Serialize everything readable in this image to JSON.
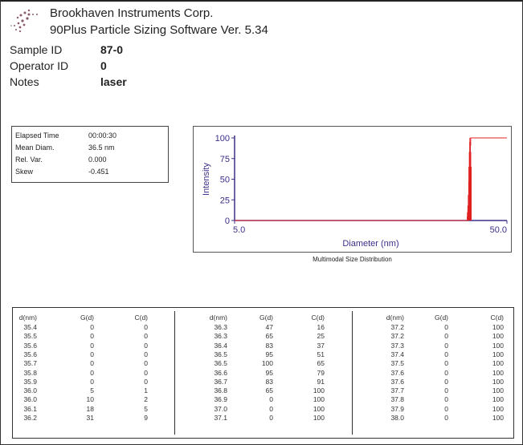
{
  "header": {
    "company": "Brookhaven Instruments Corp.",
    "software": "90Plus Particle Sizing Software Ver. 5.34",
    "logo_icon": "dotted-swirl-logo"
  },
  "sample": [
    {
      "label": "Sample ID",
      "value": "87-0"
    },
    {
      "label": "Operator ID",
      "value": "0"
    },
    {
      "label": "Notes",
      "value": "laser"
    }
  ],
  "summary": [
    {
      "label": "Elapsed Time",
      "value": "00:00:30"
    },
    {
      "label": "Mean Diam.",
      "value": "36.5 nm"
    },
    {
      "label": "Rel. Var.",
      "value": "0.000"
    },
    {
      "label": "Skew",
      "value": "-0.451"
    }
  ],
  "chart_data": {
    "type": "bar",
    "title": "Multimodal Size Distribution",
    "xlabel": "Diameter (nm)",
    "ylabel": "Intensity",
    "xscale": "log",
    "xlim": [
      5.0,
      50.0
    ],
    "ylim": [
      0,
      100
    ],
    "xticks": [
      "5.0",
      "50.0"
    ],
    "yticks": [
      "0",
      "25",
      "50",
      "75",
      "100"
    ],
    "grid": false,
    "colors": {
      "series": "#e02020",
      "axis": "#3a2f8a"
    },
    "x": [
      36.0,
      36.0,
      36.1,
      36.2,
      36.3,
      36.3,
      36.4,
      36.5,
      36.5,
      36.6,
      36.7,
      36.8
    ],
    "series": [
      {
        "key": "G(d)",
        "values": [
          5,
          10,
          18,
          31,
          47,
          65,
          83,
          95,
          100,
          95,
          83,
          65
        ]
      },
      {
        "key": "C(d)",
        "cumulative": true,
        "values": [
          1,
          2,
          5,
          9,
          16,
          25,
          37,
          51,
          65,
          79,
          91,
          100
        ]
      }
    ]
  },
  "table": {
    "headers": [
      "d(nm)",
      "G(d)",
      "C(d)"
    ],
    "groups": [
      [
        [
          "35.4",
          "0",
          "0"
        ],
        [
          "35.5",
          "0",
          "0"
        ],
        [
          "35.6",
          "0",
          "0"
        ],
        [
          "35.6",
          "0",
          "0"
        ],
        [
          "35.7",
          "0",
          "0"
        ],
        [
          "35.8",
          "0",
          "0"
        ],
        [
          "35.9",
          "0",
          "0"
        ],
        [
          "36.0",
          "5",
          "1"
        ],
        [
          "36.0",
          "10",
          "2"
        ],
        [
          "36.1",
          "18",
          "5"
        ],
        [
          "36.2",
          "31",
          "9"
        ]
      ],
      [
        [
          "36.3",
          "47",
          "16"
        ],
        [
          "36.3",
          "65",
          "25"
        ],
        [
          "36.4",
          "83",
          "37"
        ],
        [
          "36.5",
          "95",
          "51"
        ],
        [
          "36.5",
          "100",
          "65"
        ],
        [
          "36.6",
          "95",
          "79"
        ],
        [
          "36.7",
          "83",
          "91"
        ],
        [
          "36.8",
          "65",
          "100"
        ],
        [
          "36.9",
          "0",
          "100"
        ],
        [
          "37.0",
          "0",
          "100"
        ],
        [
          "37.1",
          "0",
          "100"
        ]
      ],
      [
        [
          "37.2",
          "0",
          "100"
        ],
        [
          "37.2",
          "0",
          "100"
        ],
        [
          "37.3",
          "0",
          "100"
        ],
        [
          "37.4",
          "0",
          "100"
        ],
        [
          "37.5",
          "0",
          "100"
        ],
        [
          "37.6",
          "0",
          "100"
        ],
        [
          "37.6",
          "0",
          "100"
        ],
        [
          "37.7",
          "0",
          "100"
        ],
        [
          "37.8",
          "0",
          "100"
        ],
        [
          "37.9",
          "0",
          "100"
        ],
        [
          "38.0",
          "0",
          "100"
        ]
      ]
    ]
  }
}
